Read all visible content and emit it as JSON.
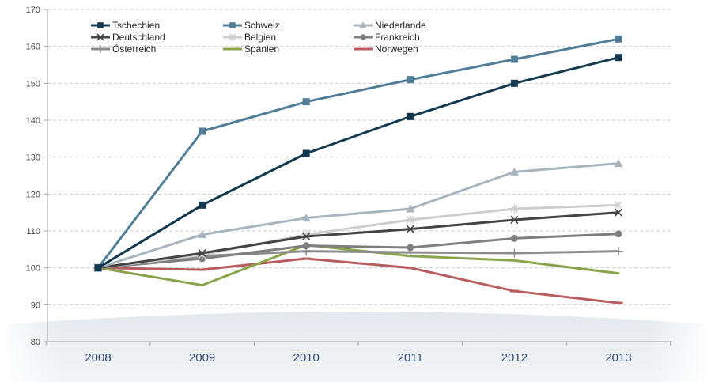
{
  "chart_data": {
    "type": "line",
    "categories": [
      "2008",
      "2009",
      "2010",
      "2011",
      "2012",
      "2013"
    ],
    "ylim": [
      80,
      170
    ],
    "yticks": [
      80,
      90,
      100,
      110,
      120,
      130,
      140,
      150,
      160,
      170
    ],
    "grid": true,
    "legend_position": "top-left",
    "series": [
      {
        "name": "Tschechien",
        "color": "#13384f",
        "marker": "square",
        "values": [
          100,
          117,
          131,
          141,
          150,
          157
        ]
      },
      {
        "name": "Schweiz",
        "color": "#527d99",
        "marker": "square",
        "values": [
          100,
          137,
          145,
          151,
          156.5,
          162
        ]
      },
      {
        "name": "Niederlande",
        "color": "#a9b5be",
        "marker": "triangle",
        "values": [
          100,
          109,
          113.5,
          116,
          126,
          128.3
        ]
      },
      {
        "name": "Deutschland",
        "color": "#444444",
        "marker": "x",
        "values": [
          100,
          104,
          108.5,
          110.5,
          113,
          115
        ]
      },
      {
        "name": "Belgien",
        "color": "#cdcdcd",
        "marker": "star",
        "values": [
          100,
          103.5,
          109,
          113,
          116,
          117
        ]
      },
      {
        "name": "Frankreich",
        "color": "#7f7f7f",
        "marker": "circle",
        "values": [
          100,
          102.5,
          106,
          105.5,
          108,
          109.2
        ]
      },
      {
        "name": "Österreich",
        "color": "#8c8c8c",
        "marker": "plus",
        "values": [
          100,
          103.2,
          104.5,
          104.2,
          104,
          104.5
        ]
      },
      {
        "name": "Spanien",
        "color": "#8aa44e",
        "marker": "none",
        "values": [
          100,
          95.3,
          106.2,
          103.2,
          102,
          98.5
        ]
      },
      {
        "name": "Norwegen",
        "color": "#b75d5f",
        "marker": "dash",
        "values": [
          100,
          99.5,
          102.5,
          100,
          93.7,
          90.5
        ]
      }
    ]
  }
}
